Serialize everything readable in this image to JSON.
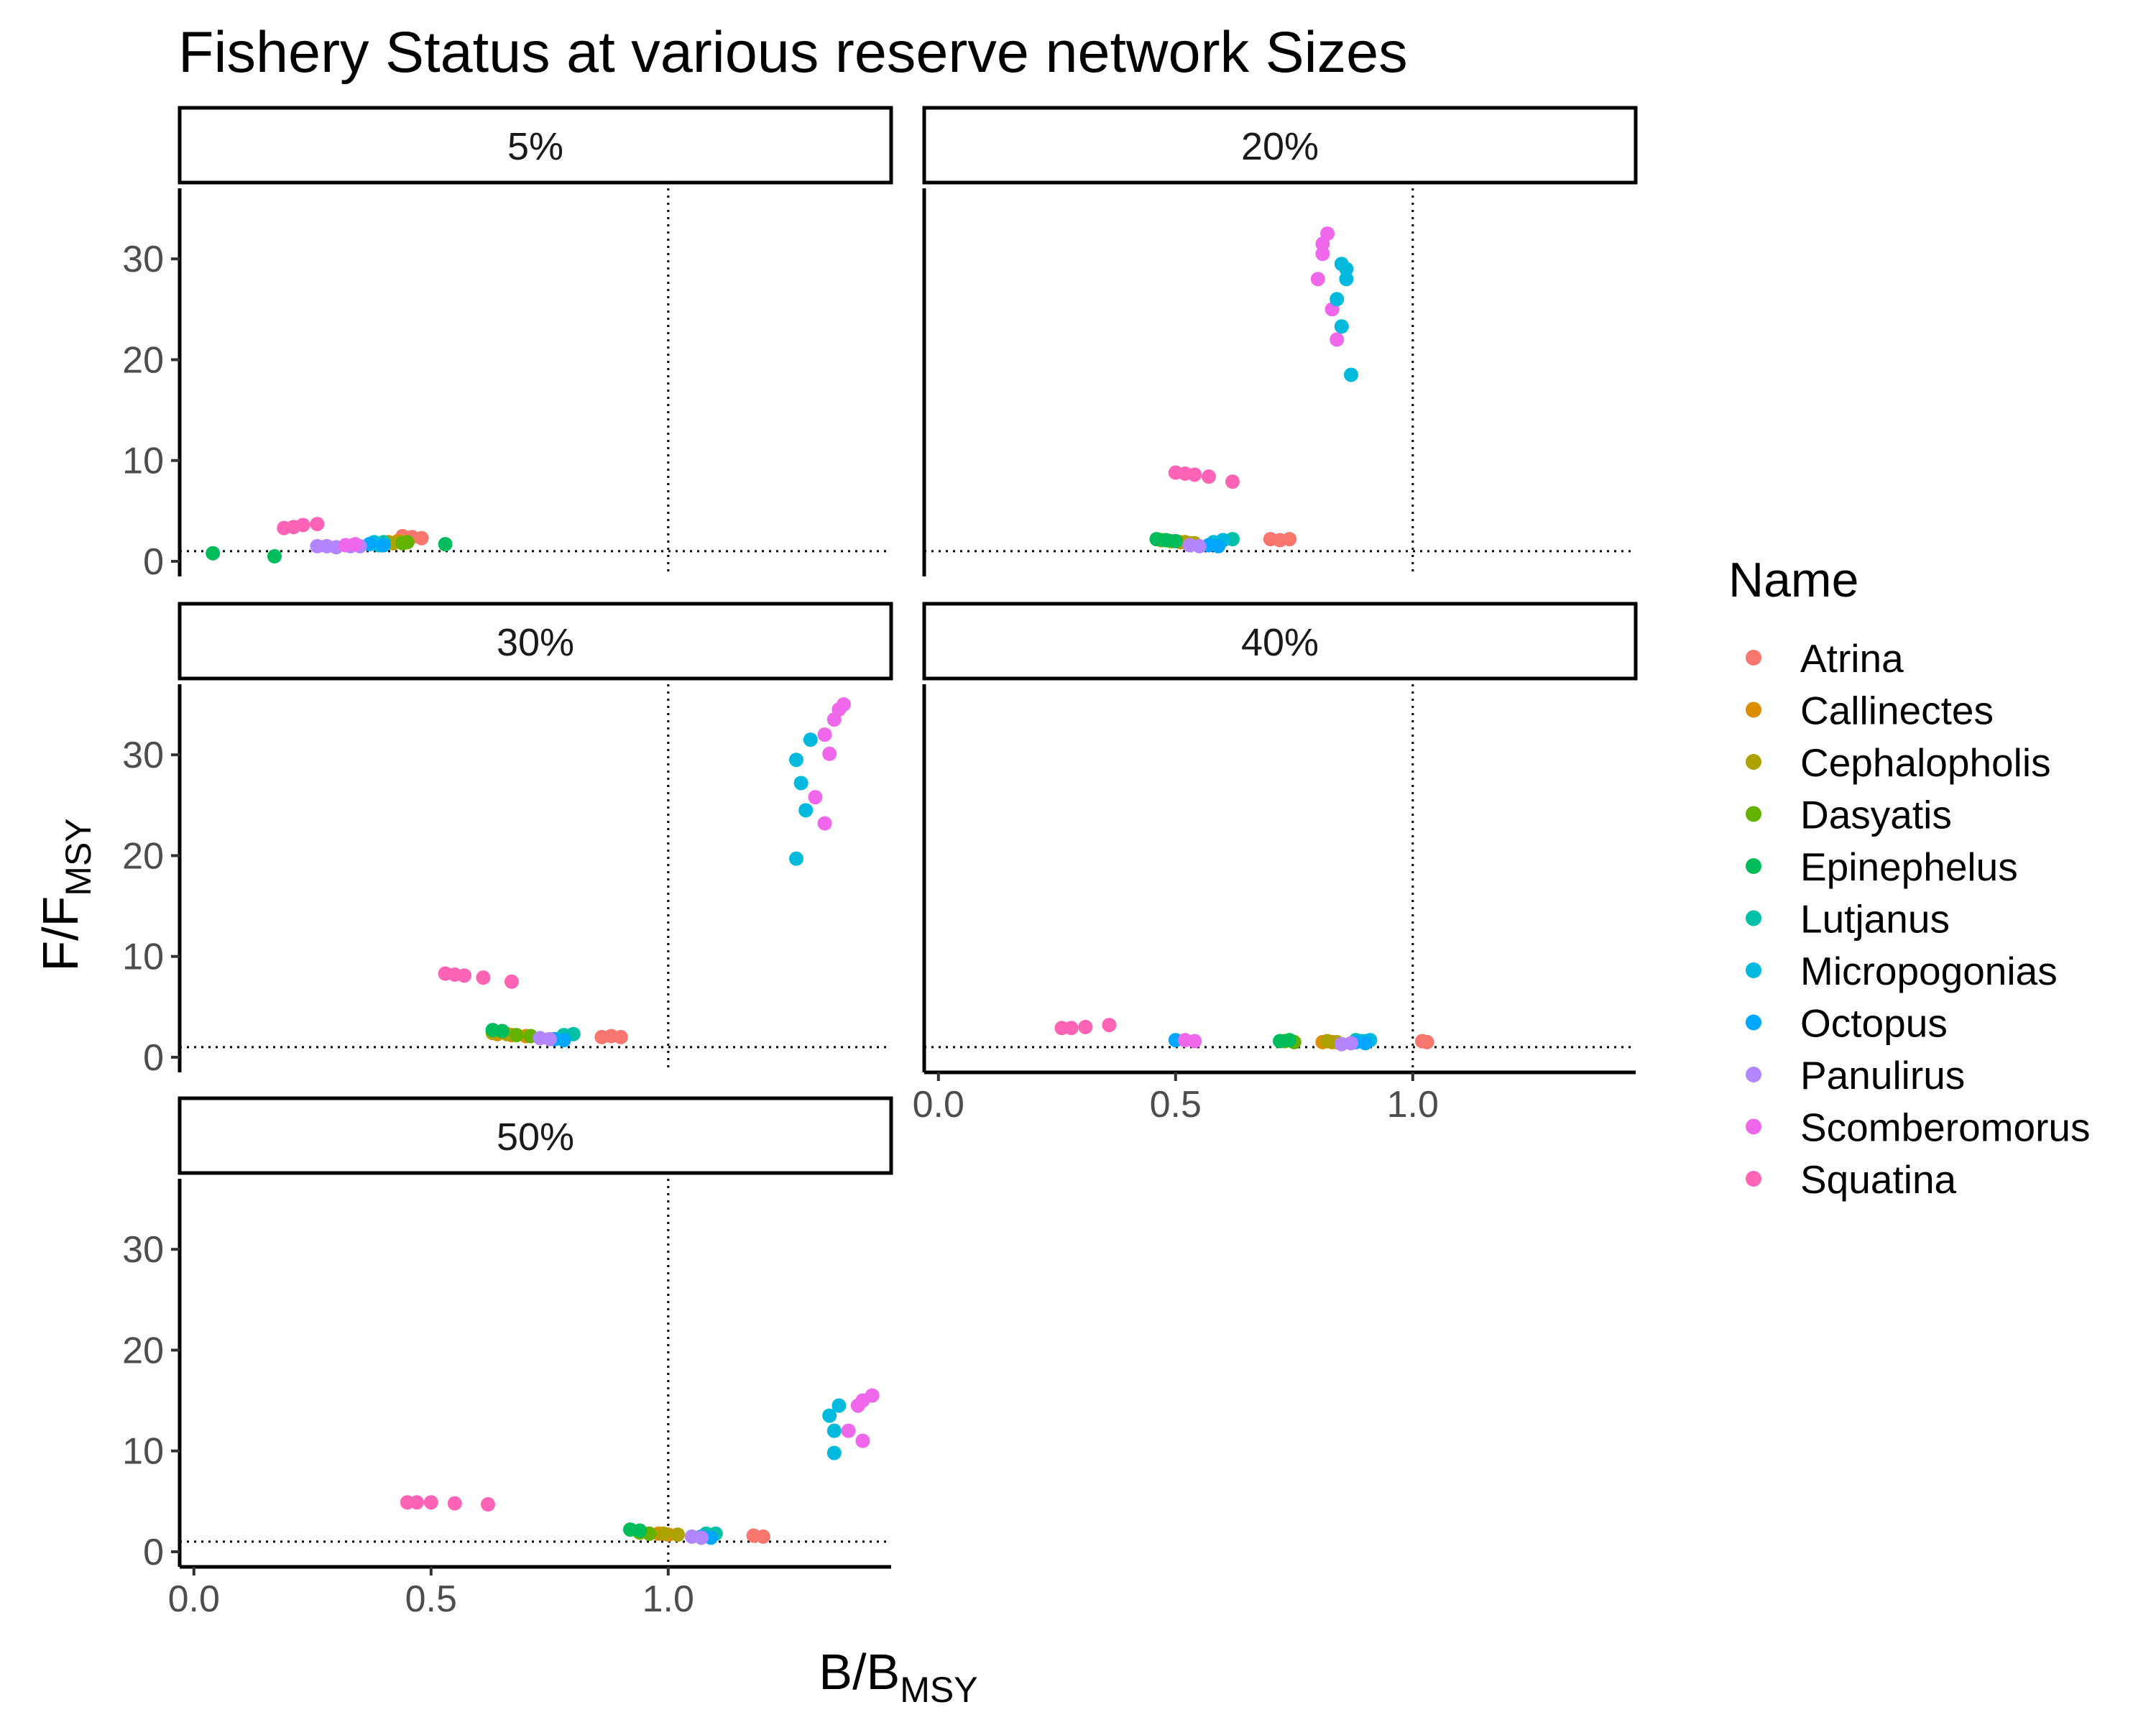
{
  "chart_data": {
    "type": "scatter",
    "title": "Fishery Status at various reserve network Sizes",
    "xlabel": {
      "main": "B",
      "sub": "MSY"
    },
    "ylabel": {
      "main": "F",
      "sub": "MSY"
    },
    "xlim": [
      -0.03,
      1.47
    ],
    "ylim": [
      -1.5,
      37
    ],
    "x_ticks": [
      0,
      0.5,
      1.0
    ],
    "x_tick_labels": [
      "0.0",
      "0.5",
      "1.0"
    ],
    "y_ticks": [
      0,
      10,
      20,
      30
    ],
    "y_tick_labels": [
      "0",
      "10",
      "20",
      "30"
    ],
    "reference_lines": {
      "x": 1.0,
      "y": 1.0
    },
    "grid": false,
    "legend": {
      "title": "Name",
      "position": "right",
      "entries": [
        {
          "name": "Atrina",
          "color": "#F8766D"
        },
        {
          "name": "Callinectes",
          "color": "#DB8E00"
        },
        {
          "name": "Cephalopholis",
          "color": "#AEA200"
        },
        {
          "name": "Dasyatis",
          "color": "#64B200"
        },
        {
          "name": "Epinephelus",
          "color": "#00BD5C"
        },
        {
          "name": "Lutjanus",
          "color": "#00C1A7"
        },
        {
          "name": "Micropogonias",
          "color": "#00BADE"
        },
        {
          "name": "Octopus",
          "color": "#00A6FF"
        },
        {
          "name": "Panulirus",
          "color": "#B385FF"
        },
        {
          "name": "Scomberomorus",
          "color": "#EF67EB"
        },
        {
          "name": "Squatina",
          "color": "#FF63B6"
        }
      ]
    },
    "panels": [
      {
        "label": "5%",
        "series": [
          {
            "name": "Atrina",
            "points": [
              [
                0.44,
                2.5
              ],
              [
                0.46,
                2.4
              ],
              [
                0.48,
                2.3
              ]
            ]
          },
          {
            "name": "Callinectes",
            "points": [
              [
                0.41,
                1.9
              ],
              [
                0.43,
                2.0
              ]
            ]
          },
          {
            "name": "Cephalopholis",
            "points": [
              [
                0.42,
                1.8
              ],
              [
                0.44,
                1.9
              ]
            ]
          },
          {
            "name": "Dasyatis",
            "points": [
              [
                0.44,
                1.8
              ],
              [
                0.45,
                1.9
              ]
            ]
          },
          {
            "name": "Epinephelus",
            "points": [
              [
                0.04,
                0.8
              ],
              [
                0.17,
                0.5
              ],
              [
                0.53,
                1.7
              ]
            ]
          },
          {
            "name": "Lutjanus",
            "points": [
              [
                0.38,
                1.8
              ],
              [
                0.4,
                1.9
              ]
            ]
          },
          {
            "name": "Micropogonias",
            "points": [
              [
                0.38,
                1.9
              ],
              [
                0.39,
                1.6
              ]
            ]
          },
          {
            "name": "Octopus",
            "points": [
              [
                0.37,
                1.7
              ],
              [
                0.4,
                1.6
              ]
            ]
          },
          {
            "name": "Panulirus",
            "points": [
              [
                0.26,
                1.5
              ],
              [
                0.28,
                1.5
              ],
              [
                0.3,
                1.4
              ],
              [
                0.33,
                1.5
              ],
              [
                0.35,
                1.5
              ]
            ]
          },
          {
            "name": "Scomberomorus",
            "points": [
              [
                0.32,
                1.6
              ],
              [
                0.34,
                1.7
              ]
            ]
          },
          {
            "name": "Squatina",
            "points": [
              [
                0.19,
                3.3
              ],
              [
                0.21,
                3.4
              ],
              [
                0.23,
                3.6
              ],
              [
                0.26,
                3.7
              ]
            ]
          }
        ]
      },
      {
        "label": "20%",
        "series": [
          {
            "name": "Atrina",
            "points": [
              [
                0.7,
                2.2
              ],
              [
                0.72,
                2.1
              ],
              [
                0.74,
                2.2
              ]
            ]
          },
          {
            "name": "Callinectes",
            "points": [
              [
                0.51,
                1.9
              ],
              [
                0.53,
                1.8
              ]
            ]
          },
          {
            "name": "Cephalopholis",
            "points": [
              [
                0.52,
                1.9
              ],
              [
                0.54,
                1.8
              ]
            ]
          },
          {
            "name": "Dasyatis",
            "points": [
              [
                0.47,
                2.1
              ],
              [
                0.49,
                2.0
              ]
            ]
          },
          {
            "name": "Epinephelus",
            "points": [
              [
                0.46,
                2.2
              ],
              [
                0.48,
                2.1
              ],
              [
                0.5,
                2.0
              ]
            ]
          },
          {
            "name": "Lutjanus",
            "points": [
              [
                0.6,
                2.1
              ],
              [
                0.62,
                2.2
              ]
            ]
          },
          {
            "name": "Micropogonias",
            "points": [
              [
                0.58,
                1.9
              ],
              [
                0.6,
                2.1
              ]
            ]
          },
          {
            "name": "Octopus",
            "points": [
              [
                0.57,
                1.6
              ],
              [
                0.59,
                1.5
              ]
            ]
          },
          {
            "name": "Panulirus",
            "points": [
              [
                0.53,
                1.6
              ],
              [
                0.55,
                1.5
              ]
            ]
          },
          {
            "name": "Scomberomorus",
            "points": [
              [
                0.8,
                28.0
              ],
              [
                0.81,
                30.5
              ],
              [
                0.81,
                31.5
              ],
              [
                0.82,
                32.5
              ],
              [
                0.83,
                25.0
              ],
              [
                0.84,
                22.0
              ]
            ]
          },
          {
            "name": "Micropogonias",
            "points": [
              [
                0.84,
                26.0
              ],
              [
                0.85,
                29.5
              ],
              [
                0.85,
                23.3
              ],
              [
                0.86,
                28.0
              ],
              [
                0.86,
                29.0
              ],
              [
                0.87,
                18.5
              ]
            ]
          },
          {
            "name": "Squatina",
            "points": [
              [
                0.5,
                8.8
              ],
              [
                0.52,
                8.7
              ],
              [
                0.54,
                8.6
              ],
              [
                0.57,
                8.4
              ],
              [
                0.62,
                7.9
              ]
            ]
          }
        ]
      },
      {
        "label": "30%",
        "series": [
          {
            "name": "Atrina",
            "points": [
              [
                0.86,
                2.0
              ],
              [
                0.88,
                2.1
              ],
              [
                0.9,
                2.0
              ]
            ]
          },
          {
            "name": "Callinectes",
            "points": [
              [
                0.64,
                2.3
              ],
              [
                0.67,
                2.2
              ],
              [
                0.7,
                2.1
              ]
            ]
          },
          {
            "name": "Cephalopholis",
            "points": [
              [
                0.63,
                2.4
              ],
              [
                0.66,
                2.3
              ]
            ]
          },
          {
            "name": "Dasyatis",
            "points": [
              [
                0.68,
                2.2
              ],
              [
                0.71,
                2.1
              ]
            ]
          },
          {
            "name": "Epinephelus",
            "points": [
              [
                0.63,
                2.7
              ],
              [
                0.65,
                2.6
              ]
            ]
          },
          {
            "name": "Lutjanus",
            "points": [
              [
                0.78,
                2.2
              ],
              [
                0.8,
                2.3
              ]
            ]
          },
          {
            "name": "Micropogonias",
            "points": [
              [
                1.27,
                29.5
              ],
              [
                1.28,
                27.2
              ],
              [
                1.29,
                24.5
              ],
              [
                1.3,
                31.5
              ],
              [
                1.27,
                19.7
              ]
            ]
          },
          {
            "name": "Octopus",
            "points": [
              [
                0.76,
                1.8
              ],
              [
                0.78,
                1.7
              ]
            ]
          },
          {
            "name": "Panulirus",
            "points": [
              [
                0.73,
                1.9
              ],
              [
                0.75,
                1.8
              ]
            ]
          },
          {
            "name": "Scomberomorus",
            "points": [
              [
                1.31,
                25.8
              ],
              [
                1.33,
                23.2
              ],
              [
                1.33,
                32.0
              ],
              [
                1.34,
                30.1
              ],
              [
                1.35,
                33.5
              ],
              [
                1.36,
                34.5
              ],
              [
                1.37,
                35.0
              ]
            ]
          },
          {
            "name": "Squatina",
            "points": [
              [
                0.53,
                8.3
              ],
              [
                0.55,
                8.2
              ],
              [
                0.57,
                8.1
              ],
              [
                0.61,
                7.9
              ],
              [
                0.67,
                7.5
              ]
            ]
          }
        ]
      },
      {
        "label": "40%",
        "series": [
          {
            "name": "Atrina",
            "points": [
              [
                1.02,
                1.6
              ],
              [
                1.03,
                1.5
              ]
            ]
          },
          {
            "name": "Callinectes",
            "points": [
              [
                0.81,
                1.5
              ],
              [
                0.83,
                1.5
              ]
            ]
          },
          {
            "name": "Cephalopholis",
            "points": [
              [
                0.82,
                1.6
              ],
              [
                0.84,
                1.5
              ]
            ]
          },
          {
            "name": "Dasyatis",
            "points": [
              [
                0.73,
                1.6
              ],
              [
                0.75,
                1.5
              ]
            ]
          },
          {
            "name": "Epinephelus",
            "points": [
              [
                0.72,
                1.6
              ],
              [
                0.74,
                1.7
              ]
            ]
          },
          {
            "name": "Lutjanus",
            "points": [
              [
                0.88,
                1.7
              ],
              [
                0.9,
                1.6
              ]
            ]
          },
          {
            "name": "Micropogonias",
            "points": [
              [
                0.89,
                1.6
              ],
              [
                0.91,
                1.7
              ]
            ]
          },
          {
            "name": "Octopus",
            "points": [
              [
                0.5,
                1.7
              ],
              [
                0.88,
                1.5
              ],
              [
                0.9,
                1.4
              ]
            ]
          },
          {
            "name": "Panulirus",
            "points": [
              [
                0.85,
                1.3
              ],
              [
                0.87,
                1.4
              ]
            ]
          },
          {
            "name": "Scomberomorus",
            "points": [
              [
                0.52,
                1.7
              ],
              [
                0.54,
                1.6
              ]
            ]
          },
          {
            "name": "Squatina",
            "points": [
              [
                0.26,
                2.9
              ],
              [
                0.28,
                2.9
              ],
              [
                0.31,
                3.0
              ],
              [
                0.36,
                3.2
              ]
            ]
          }
        ]
      },
      {
        "label": "50%",
        "series": [
          {
            "name": "Atrina",
            "points": [
              [
                1.18,
                1.6
              ],
              [
                1.2,
                1.5
              ]
            ]
          },
          {
            "name": "Callinectes",
            "points": [
              [
                0.96,
                1.8
              ],
              [
                0.98,
                1.8
              ],
              [
                1.0,
                1.7
              ]
            ]
          },
          {
            "name": "Cephalopholis",
            "points": [
              [
                0.99,
                1.8
              ],
              [
                1.02,
                1.7
              ]
            ]
          },
          {
            "name": "Dasyatis",
            "points": [
              [
                0.94,
                1.9
              ],
              [
                0.96,
                1.8
              ]
            ]
          },
          {
            "name": "Epinephelus",
            "points": [
              [
                0.92,
                2.2
              ],
              [
                0.94,
                2.1
              ]
            ]
          },
          {
            "name": "Lutjanus",
            "points": [
              [
                1.08,
                1.8
              ],
              [
                1.1,
                1.8
              ]
            ]
          },
          {
            "name": "Micropogonias",
            "points": [
              [
                1.34,
                13.5
              ],
              [
                1.35,
                12.0
              ],
              [
                1.36,
                14.5
              ],
              [
                1.35,
                9.8
              ]
            ]
          },
          {
            "name": "Octopus",
            "points": [
              [
                1.07,
                1.5
              ],
              [
                1.09,
                1.4
              ]
            ]
          },
          {
            "name": "Panulirus",
            "points": [
              [
                1.05,
                1.5
              ],
              [
                1.07,
                1.4
              ]
            ]
          },
          {
            "name": "Scomberomorus",
            "points": [
              [
                1.38,
                12.0
              ],
              [
                1.4,
                14.5
              ],
              [
                1.41,
                11.0
              ],
              [
                1.41,
                15.0
              ],
              [
                1.43,
                15.5
              ]
            ]
          },
          {
            "name": "Squatina",
            "points": [
              [
                0.45,
                4.9
              ],
              [
                0.47,
                4.9
              ],
              [
                0.5,
                4.9
              ],
              [
                0.55,
                4.8
              ],
              [
                0.62,
                4.7
              ]
            ]
          }
        ]
      }
    ]
  }
}
